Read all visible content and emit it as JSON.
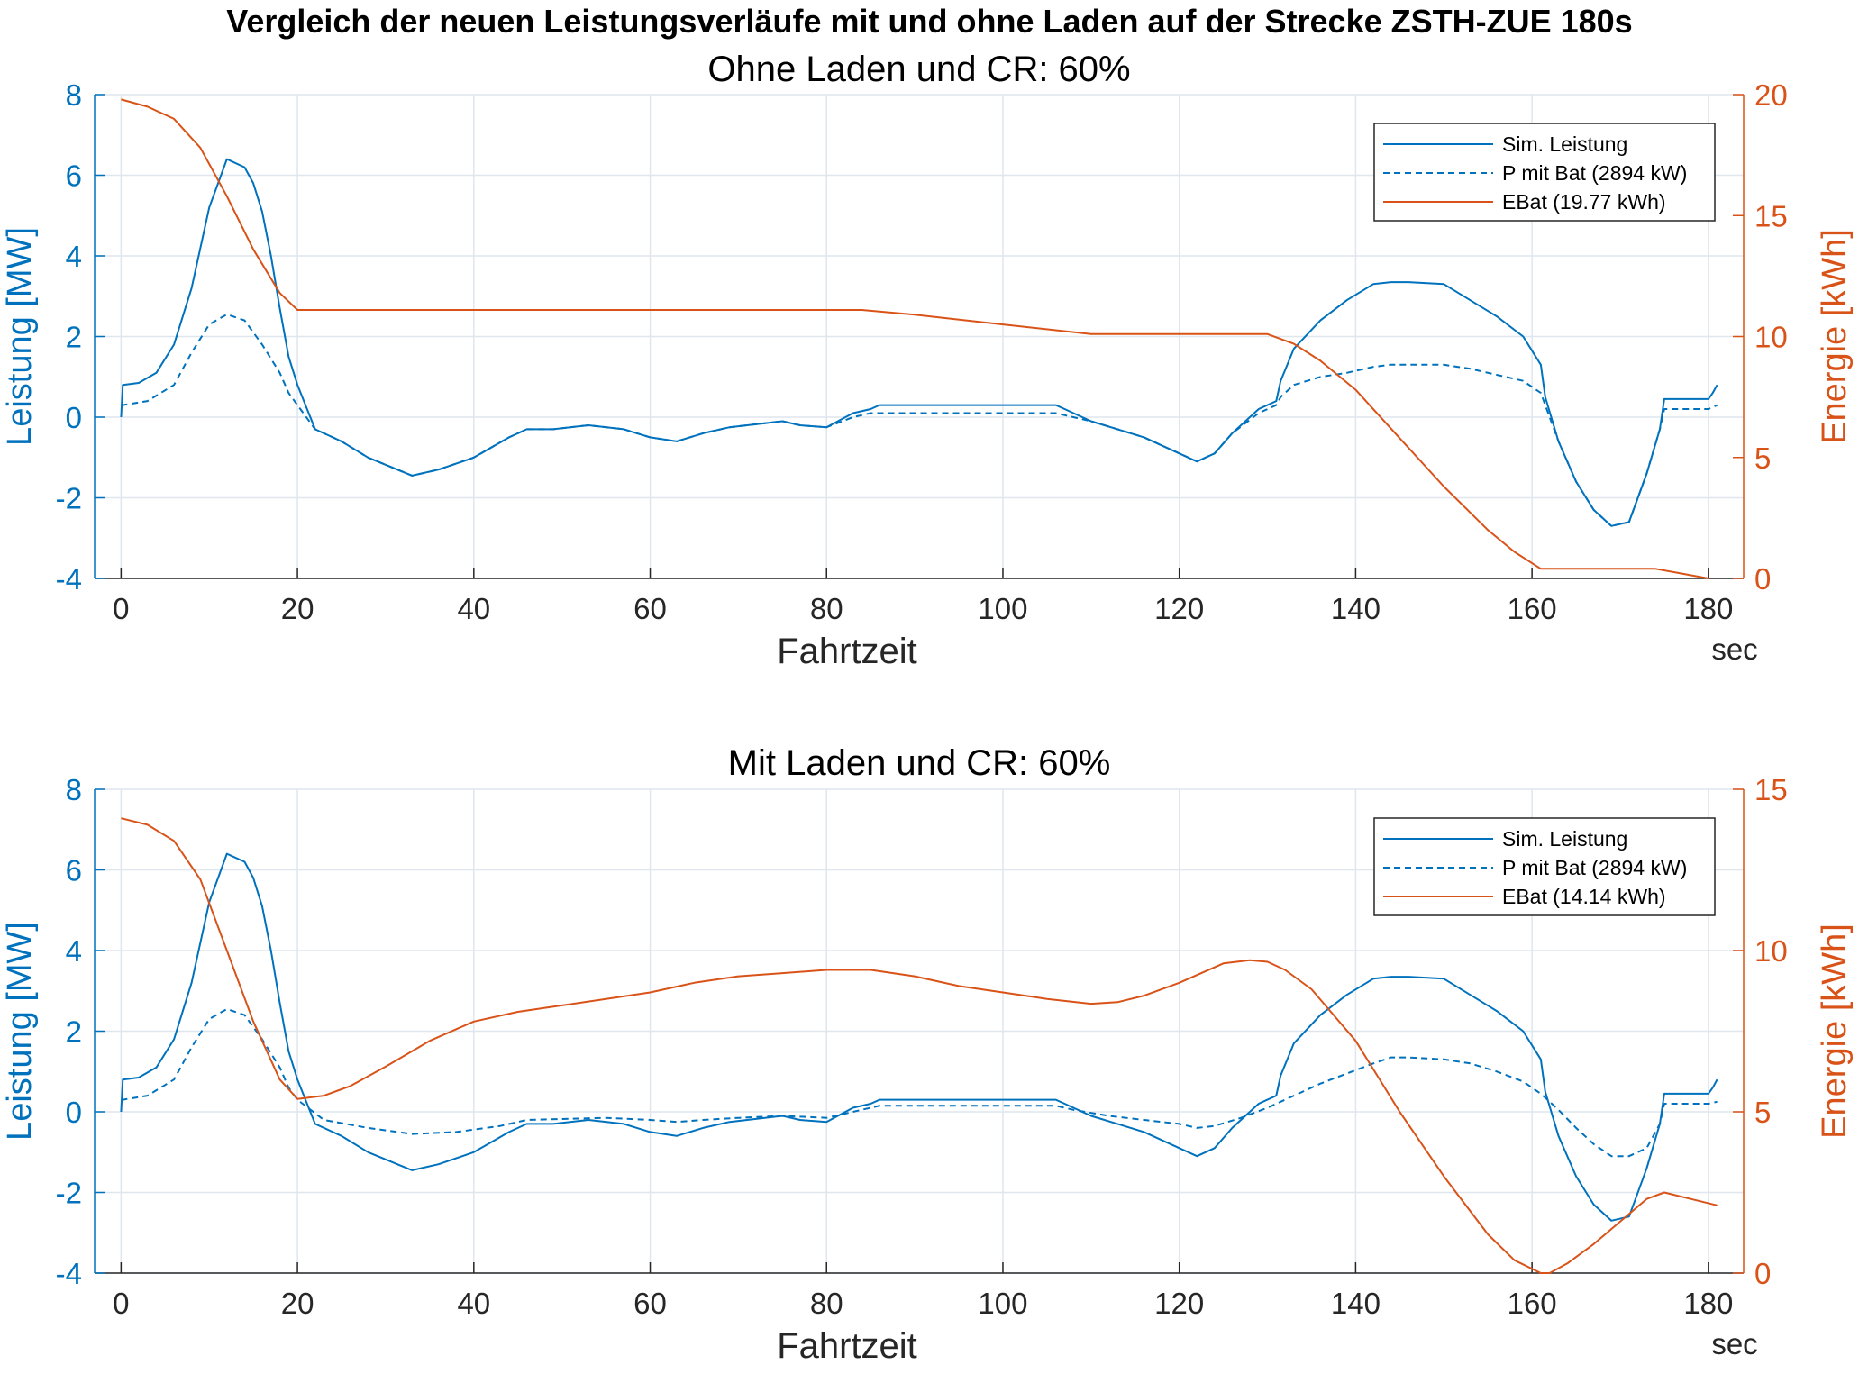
{
  "figure_title": "Vergleich der neuen Leistungsverläufe mit und ohne Laden auf der Strecke ZSTH-ZUE 180s",
  "colors": {
    "power": "#0072bd",
    "energy": "#d95319",
    "grid": "#dfe6ee",
    "text": "#262626"
  },
  "chart_data": [
    {
      "type": "line",
      "title": "Ohne Laden und CR: 60%",
      "xlabel": "Fahrtzeit",
      "xunit": "sec",
      "ylabel": "Leistung [MW]",
      "y2label": "Energie [kWh]",
      "xlim": [
        -3,
        184
      ],
      "ylim": [
        -4,
        8
      ],
      "y2lim": [
        0,
        20
      ],
      "xticks": [
        "0",
        "20",
        "40",
        "60",
        "80",
        "100",
        "120",
        "140",
        "160",
        "180"
      ],
      "yticks": [
        "-4",
        "-2",
        "0",
        "2",
        "4",
        "6",
        "8"
      ],
      "y2ticks": [
        "0",
        "5",
        "10",
        "15",
        "20"
      ],
      "grid": true,
      "legend_position": "top-right",
      "series": [
        {
          "name": "Sim. Leistung",
          "axis": "left",
          "style": "solid",
          "x": [
            0,
            0.2,
            2,
            4,
            6,
            8,
            10,
            12,
            14,
            15,
            16,
            17,
            18,
            19,
            20,
            22,
            25,
            28,
            33,
            36,
            40,
            44,
            46,
            49,
            53,
            57,
            60,
            63,
            66,
            69,
            71,
            73,
            75,
            77,
            80,
            83,
            85,
            86,
            95,
            106,
            107,
            110,
            113,
            116,
            119,
            122,
            124,
            126,
            129,
            131,
            131.5,
            133,
            136,
            139,
            142,
            144,
            146,
            150,
            153,
            156,
            159,
            161,
            161.5,
            163,
            165,
            167,
            169,
            171,
            173,
            174.5,
            175,
            180,
            180.5,
            181
          ],
          "y": [
            0,
            0.8,
            0.85,
            1.1,
            1.8,
            3.2,
            5.2,
            6.4,
            6.2,
            5.8,
            5.1,
            4.0,
            2.7,
            1.5,
            0.8,
            -0.3,
            -0.6,
            -1.0,
            -1.45,
            -1.3,
            -1.0,
            -0.5,
            -0.3,
            -0.3,
            -0.2,
            -0.3,
            -0.5,
            -0.6,
            -0.4,
            -0.25,
            -0.2,
            -0.15,
            -0.1,
            -0.2,
            -0.25,
            0.1,
            0.2,
            0.3,
            0.3,
            0.3,
            0.2,
            -0.1,
            -0.3,
            -0.5,
            -0.8,
            -1.1,
            -0.9,
            -0.4,
            0.2,
            0.4,
            0.9,
            1.7,
            2.4,
            2.9,
            3.3,
            3.35,
            3.35,
            3.3,
            2.9,
            2.5,
            2.0,
            1.3,
            0.5,
            -0.6,
            -1.6,
            -2.3,
            -2.7,
            -2.6,
            -1.4,
            -0.3,
            0.45,
            0.45,
            0.6,
            0.8
          ]
        },
        {
          "name": "P mit Bat (2894 kW)",
          "axis": "left",
          "style": "dashed",
          "x": [
            0,
            0.2,
            3,
            6,
            8,
            10,
            12,
            14,
            16,
            18,
            19,
            20,
            22,
            25,
            28,
            33,
            36,
            40,
            44,
            46,
            49,
            53,
            57,
            60,
            63,
            66,
            69,
            71,
            73,
            75,
            77,
            80,
            83,
            85,
            86,
            95,
            106,
            107,
            110,
            113,
            116,
            119,
            122,
            124,
            126,
            129,
            131,
            131.5,
            133,
            136,
            139,
            142,
            144,
            146,
            150,
            153,
            156,
            159,
            161,
            161.5,
            163,
            165,
            167,
            169,
            171,
            173,
            174.5,
            175,
            180,
            180.5,
            181
          ],
          "y": [
            0.3,
            0.3,
            0.4,
            0.8,
            1.6,
            2.3,
            2.55,
            2.4,
            1.8,
            1.1,
            0.6,
            0.3,
            -0.3,
            -0.6,
            -1.0,
            -1.45,
            -1.3,
            -1.0,
            -0.5,
            -0.3,
            -0.3,
            -0.2,
            -0.3,
            -0.5,
            -0.6,
            -0.4,
            -0.25,
            -0.2,
            -0.15,
            -0.1,
            -0.2,
            -0.25,
            0.0,
            0.1,
            0.1,
            0.1,
            0.1,
            0.05,
            -0.1,
            -0.3,
            -0.5,
            -0.8,
            -1.1,
            -0.9,
            -0.4,
            0.1,
            0.3,
            0.5,
            0.8,
            1.0,
            1.1,
            1.25,
            1.3,
            1.3,
            1.3,
            1.2,
            1.05,
            0.9,
            0.6,
            0.3,
            -0.6,
            -1.6,
            -2.3,
            -2.7,
            -2.6,
            -1.4,
            -0.3,
            0.2,
            0.2,
            0.25,
            0.3
          ]
        },
        {
          "name": "EBat (19.77 kWh)",
          "axis": "right",
          "style": "solid",
          "x": [
            0,
            3,
            6,
            9,
            12,
            15,
            18,
            20,
            40,
            60,
            84,
            90,
            100,
            110,
            130,
            133,
            136,
            140,
            145,
            150,
            155,
            158,
            161,
            163,
            165,
            174,
            177,
            180
          ],
          "y": [
            19.8,
            19.5,
            19.0,
            17.8,
            15.8,
            13.6,
            11.8,
            11.1,
            11.1,
            11.1,
            11.1,
            10.9,
            10.5,
            10.1,
            10.1,
            9.7,
            9.0,
            7.8,
            5.8,
            3.8,
            2.0,
            1.1,
            0.4,
            0.4,
            0.4,
            0.4,
            0.2,
            0.0
          ]
        }
      ]
    },
    {
      "type": "line",
      "title": "Mit Laden und CR: 60%",
      "xlabel": "Fahrtzeit",
      "xunit": "sec",
      "ylabel": "Leistung [MW]",
      "y2label": "Energie [kWh]",
      "xlim": [
        -3,
        184
      ],
      "ylim": [
        -4,
        8
      ],
      "y2lim": [
        0,
        15
      ],
      "xticks": [
        "0",
        "20",
        "40",
        "60",
        "80",
        "100",
        "120",
        "140",
        "160",
        "180"
      ],
      "yticks": [
        "-4",
        "-2",
        "0",
        "2",
        "4",
        "6",
        "8"
      ],
      "y2ticks": [
        "0",
        "5",
        "10",
        "15"
      ],
      "grid": true,
      "legend_position": "top-right",
      "series": [
        {
          "name": "Sim. Leistung",
          "axis": "left",
          "style": "solid",
          "x": [
            0,
            0.2,
            2,
            4,
            6,
            8,
            10,
            12,
            14,
            15,
            16,
            17,
            18,
            19,
            20,
            22,
            25,
            28,
            33,
            36,
            40,
            44,
            46,
            49,
            53,
            57,
            60,
            63,
            66,
            69,
            71,
            73,
            75,
            77,
            80,
            83,
            85,
            86,
            95,
            106,
            107,
            110,
            113,
            116,
            119,
            122,
            124,
            126,
            129,
            131,
            131.5,
            133,
            136,
            139,
            142,
            144,
            146,
            150,
            153,
            156,
            159,
            161,
            161.5,
            163,
            165,
            167,
            169,
            171,
            173,
            174.5,
            175,
            180,
            180.5,
            181
          ],
          "y": [
            0,
            0.8,
            0.85,
            1.1,
            1.8,
            3.2,
            5.2,
            6.4,
            6.2,
            5.8,
            5.1,
            4.0,
            2.7,
            1.5,
            0.8,
            -0.3,
            -0.6,
            -1.0,
            -1.45,
            -1.3,
            -1.0,
            -0.5,
            -0.3,
            -0.3,
            -0.2,
            -0.3,
            -0.5,
            -0.6,
            -0.4,
            -0.25,
            -0.2,
            -0.15,
            -0.1,
            -0.2,
            -0.25,
            0.1,
            0.2,
            0.3,
            0.3,
            0.3,
            0.2,
            -0.1,
            -0.3,
            -0.5,
            -0.8,
            -1.1,
            -0.9,
            -0.4,
            0.2,
            0.4,
            0.9,
            1.7,
            2.4,
            2.9,
            3.3,
            3.35,
            3.35,
            3.3,
            2.9,
            2.5,
            2.0,
            1.3,
            0.5,
            -0.6,
            -1.6,
            -2.3,
            -2.7,
            -2.6,
            -1.4,
            -0.3,
            0.45,
            0.45,
            0.6,
            0.8
          ]
        },
        {
          "name": "P mit Bat (2894 kW)",
          "axis": "left",
          "style": "dashed",
          "x": [
            0,
            0.2,
            3,
            6,
            8,
            10,
            12,
            14,
            16,
            18,
            19,
            20,
            23,
            28,
            33,
            38,
            43,
            46,
            55,
            60,
            63,
            66,
            70,
            75,
            80,
            83,
            85,
            86,
            95,
            106,
            108,
            112,
            116,
            120,
            122,
            124,
            127,
            130,
            133,
            136,
            139,
            142,
            144,
            146,
            150,
            153,
            156,
            159,
            161,
            163,
            165,
            167,
            169,
            171,
            173,
            174.5,
            175,
            180,
            181
          ],
          "y": [
            0.3,
            0.3,
            0.4,
            0.8,
            1.6,
            2.3,
            2.55,
            2.4,
            1.8,
            1.1,
            0.6,
            0.3,
            -0.2,
            -0.4,
            -0.55,
            -0.5,
            -0.35,
            -0.2,
            -0.15,
            -0.2,
            -0.25,
            -0.2,
            -0.15,
            -0.1,
            -0.15,
            0.0,
            0.1,
            0.15,
            0.15,
            0.15,
            0.05,
            -0.1,
            -0.2,
            -0.3,
            -0.4,
            -0.35,
            -0.15,
            0.1,
            0.4,
            0.7,
            0.95,
            1.2,
            1.35,
            1.35,
            1.3,
            1.2,
            1.0,
            0.75,
            0.45,
            0.05,
            -0.4,
            -0.8,
            -1.1,
            -1.1,
            -0.9,
            -0.3,
            0.2,
            0.2,
            0.25
          ]
        },
        {
          "name": "EBat (14.14 kWh)",
          "axis": "right",
          "style": "solid",
          "x": [
            0,
            3,
            6,
            9,
            12,
            15,
            18,
            20,
            23,
            26,
            30,
            35,
            40,
            45,
            50,
            55,
            60,
            65,
            70,
            75,
            80,
            85,
            90,
            95,
            100,
            105,
            110,
            113,
            116,
            120,
            125,
            128,
            130,
            132,
            135,
            140,
            145,
            150,
            155,
            158,
            161,
            162,
            164,
            167,
            170,
            173,
            175,
            178,
            181
          ],
          "y": [
            14.1,
            13.9,
            13.4,
            12.2,
            10.0,
            7.8,
            6.0,
            5.4,
            5.5,
            5.8,
            6.4,
            7.2,
            7.8,
            8.1,
            8.3,
            8.5,
            8.7,
            9.0,
            9.2,
            9.3,
            9.4,
            9.4,
            9.2,
            8.9,
            8.7,
            8.5,
            8.35,
            8.4,
            8.6,
            9.0,
            9.6,
            9.7,
            9.65,
            9.4,
            8.8,
            7.2,
            5.0,
            3.0,
            1.2,
            0.4,
            0.0,
            0.0,
            0.3,
            0.9,
            1.6,
            2.3,
            2.5,
            2.3,
            2.1
          ]
        }
      ]
    }
  ]
}
